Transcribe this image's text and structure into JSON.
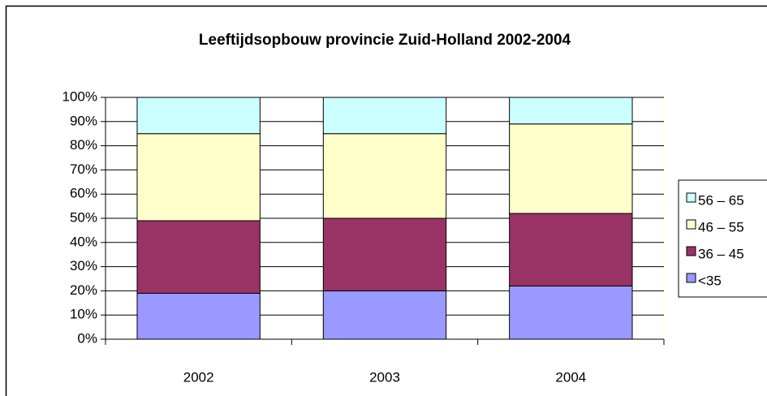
{
  "chart_data": {
    "type": "stacked_bar",
    "title": "Leeftijdsopbouw provincie Zuid-Holland 2002-2004",
    "categories": [
      "2002",
      "2003",
      "2004"
    ],
    "series": [
      {
        "name": "<35",
        "color": "#9999ff",
        "values": [
          19,
          20,
          22
        ]
      },
      {
        "name": "36 – 45",
        "color": "#993366",
        "values": [
          30,
          30,
          30
        ]
      },
      {
        "name": "46 – 55",
        "color": "#ffffcc",
        "values": [
          36,
          35,
          37
        ]
      },
      {
        "name": "56 – 65",
        "color": "#ccffff",
        "values": [
          15,
          15,
          11
        ]
      }
    ],
    "ylim": [
      0,
      100
    ],
    "yticks": [
      {
        "value": 0,
        "label": "0%"
      },
      {
        "value": 10,
        "label": "10%"
      },
      {
        "value": 20,
        "label": "20%"
      },
      {
        "value": 30,
        "label": "30%"
      },
      {
        "value": 40,
        "label": "40%"
      },
      {
        "value": 50,
        "label": "50%"
      },
      {
        "value": 60,
        "label": "60%"
      },
      {
        "value": 70,
        "label": "70%"
      },
      {
        "value": 80,
        "label": "80%"
      },
      {
        "value": 90,
        "label": "90%"
      },
      {
        "value": 100,
        "label": "100%"
      }
    ],
    "grid": true,
    "legend": "right"
  }
}
